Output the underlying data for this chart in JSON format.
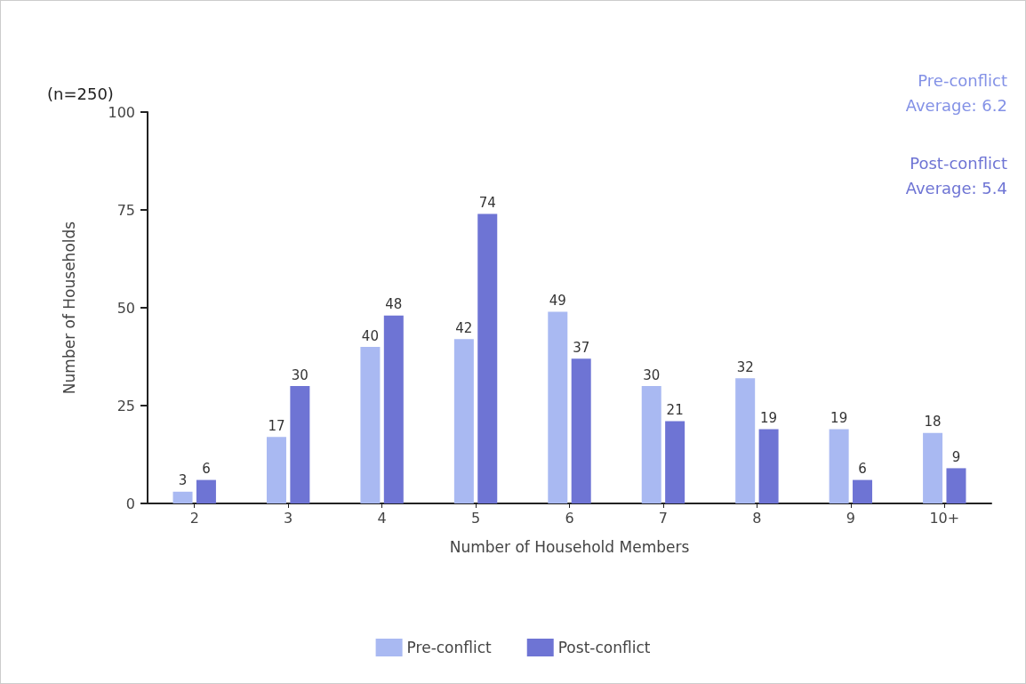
{
  "chart_data": {
    "type": "bar",
    "xlabel": "Number of Household Members",
    "ylabel": "Number of Households",
    "categories": [
      "2",
      "3",
      "4",
      "5",
      "6",
      "7",
      "8",
      "9",
      "10+"
    ],
    "series": [
      {
        "name": "Pre-conflict",
        "color": "#a9b9f2",
        "values": [
          3,
          17,
          40,
          42,
          49,
          30,
          32,
          19,
          18
        ]
      },
      {
        "name": "Post-conflict",
        "color": "#6e74d4",
        "values": [
          6,
          30,
          48,
          74,
          37,
          21,
          19,
          6,
          9
        ]
      }
    ],
    "ylim": [
      0,
      100
    ],
    "yticks": [
      0,
      25,
      50,
      75,
      100
    ],
    "grid": false,
    "legend": "bottom",
    "data_labels": true,
    "annotations": [
      "(n=250)",
      "Pre-conflict\nAverage: 6.2",
      "Post-conflict\nAverage: 5.4"
    ]
  }
}
